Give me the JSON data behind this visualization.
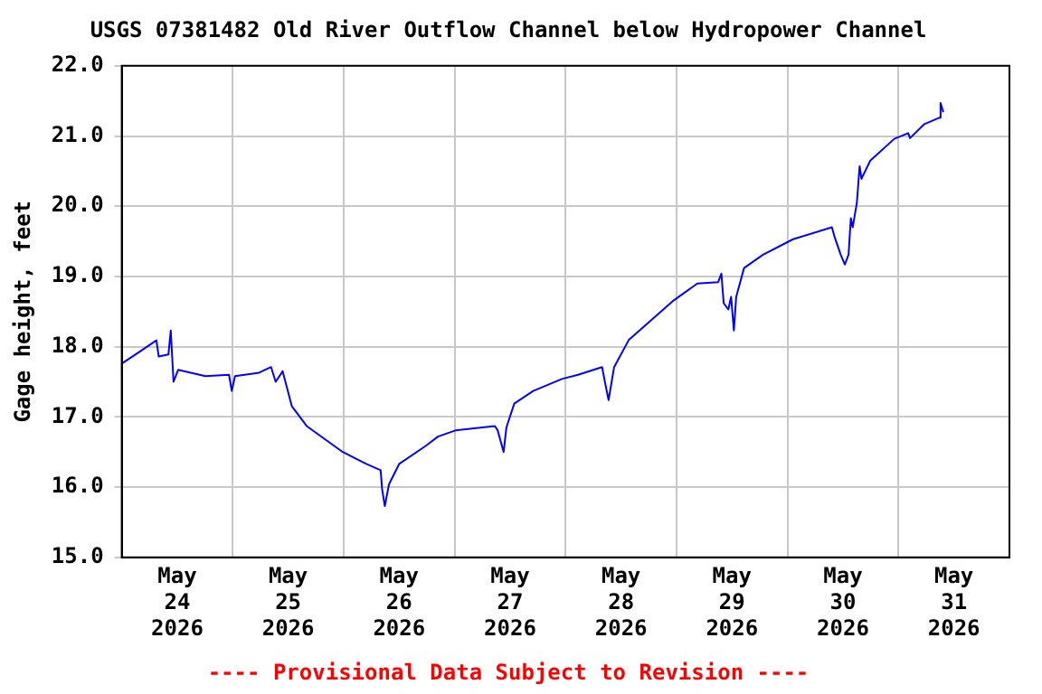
{
  "chart_data": {
    "type": "line",
    "title": "USGS 07381482 Old River Outflow Channel below Hydropower Channel",
    "ylabel": "Gage height, feet",
    "annotations": [
      "---- Provisional Data Subject to Revision ----"
    ],
    "x": [
      "2026-05-24T00:00",
      "2026-05-24T03:54",
      "2026-05-24T07:30",
      "2026-05-24T08:00",
      "2026-05-24T10:06",
      "2026-05-24T10:36",
      "2026-05-24T11:12",
      "2026-05-24T12:12",
      "2026-05-24T18:06",
      "2026-05-24T23:12",
      "2026-05-24T23:48",
      "2026-05-25T00:30",
      "2026-05-25T05:42",
      "2026-05-25T08:18",
      "2026-05-25T09:18",
      "2026-05-25T10:48",
      "2026-05-25T11:24",
      "2026-05-25T12:48",
      "2026-05-25T16:00",
      "2026-05-25T23:48",
      "2026-05-26T04:54",
      "2026-05-26T08:00",
      "2026-05-26T08:18",
      "2026-05-26T08:54",
      "2026-05-26T09:48",
      "2026-05-26T12:00",
      "2026-05-26T17:48",
      "2026-05-26T20:24",
      "2026-05-27T00:18",
      "2026-05-27T08:42",
      "2026-05-27T09:18",
      "2026-05-27T10:36",
      "2026-05-27T11:12",
      "2026-05-27T12:54",
      "2026-05-27T17:00",
      "2026-05-27T23:12",
      "2026-05-28T02:42",
      "2026-05-28T07:54",
      "2026-05-28T08:30",
      "2026-05-28T09:18",
      "2026-05-28T10:30",
      "2026-05-28T13:42",
      "2026-05-28T18:12",
      "2026-05-28T23:24",
      "2026-05-29T04:30",
      "2026-05-29T09:00",
      "2026-05-29T09:42",
      "2026-05-29T10:12",
      "2026-05-29T11:12",
      "2026-05-29T11:48",
      "2026-05-29T12:24",
      "2026-05-29T12:54",
      "2026-05-29T14:36",
      "2026-05-29T18:42",
      "2026-05-30T01:12",
      "2026-05-30T09:36",
      "2026-05-30T10:12",
      "2026-05-30T11:30",
      "2026-05-30T12:24",
      "2026-05-30T13:12",
      "2026-05-30T13:42",
      "2026-05-30T14:06",
      "2026-05-30T15:00",
      "2026-05-30T15:36",
      "2026-05-30T16:00",
      "2026-05-30T17:54",
      "2026-05-30T23:06",
      "2026-05-31T02:06",
      "2026-05-31T02:30",
      "2026-05-31T05:36",
      "2026-05-31T08:48",
      "2026-05-31T09:06",
      "2026-05-31T09:42"
    ],
    "series": [
      {
        "color": "#0000ff",
        "values": [
          17.76,
          17.93,
          18.09,
          17.86,
          17.89,
          18.23,
          17.5,
          17.67,
          17.58,
          17.6,
          17.37,
          17.58,
          17.63,
          17.71,
          17.5,
          17.65,
          17.5,
          17.15,
          16.87,
          16.5,
          16.33,
          16.24,
          15.98,
          15.73,
          16.04,
          16.33,
          16.59,
          16.72,
          16.81,
          16.87,
          16.81,
          16.5,
          16.85,
          17.19,
          17.37,
          17.54,
          17.6,
          17.71,
          17.5,
          17.24,
          17.71,
          18.1,
          18.36,
          18.66,
          18.9,
          18.92,
          19.04,
          18.62,
          18.53,
          18.71,
          18.23,
          18.71,
          19.12,
          19.31,
          19.53,
          19.7,
          19.56,
          19.31,
          19.17,
          19.31,
          19.83,
          19.7,
          20.05,
          20.57,
          20.39,
          20.65,
          20.96,
          21.04,
          20.97,
          21.17,
          21.26,
          21.47,
          21.34
        ]
      }
    ],
    "xlim": [
      "2026-05-24T00:00",
      "2026-06-01T00:00"
    ],
    "xticks": [
      {
        "value": "2026-05-24T12:00",
        "label": "May 24 2026"
      },
      {
        "value": "2026-05-25T00:00",
        "label": null
      },
      {
        "value": "2026-05-25T12:00",
        "label": "May 25 2026"
      },
      {
        "value": "2026-05-26T00:00",
        "label": null
      },
      {
        "value": "2026-05-26T12:00",
        "label": "May 26 2026"
      },
      {
        "value": "2026-05-27T00:00",
        "label": null
      },
      {
        "value": "2026-05-27T12:00",
        "label": "May 27 2026"
      },
      {
        "value": "2026-05-28T00:00",
        "label": null
      },
      {
        "value": "2026-05-28T12:00",
        "label": "May 28 2026"
      },
      {
        "value": "2026-05-29T00:00",
        "label": null
      },
      {
        "value": "2026-05-29T12:00",
        "label": "May 29 2026"
      },
      {
        "value": "2026-05-30T00:00",
        "label": null
      },
      {
        "value": "2026-05-30T12:00",
        "label": "May 30 2026"
      },
      {
        "value": "2026-05-31T00:00",
        "label": null
      },
      {
        "value": "2026-05-31T12:00",
        "label": "May 31 2026"
      }
    ],
    "ylim": [
      15,
      22
    ],
    "yticks": [
      {
        "value": 15,
        "label": "15.0"
      },
      {
        "value": 16,
        "label": "16.0"
      },
      {
        "value": 17,
        "label": "17.0"
      },
      {
        "value": 18,
        "label": "18.0"
      },
      {
        "value": 19,
        "label": "19.0"
      },
      {
        "value": 20,
        "label": "20.0"
      },
      {
        "value": 21,
        "label": "21.0"
      },
      {
        "value": 22,
        "label": "22.0"
      }
    ],
    "grid": true,
    "legend": false,
    "marker": "none",
    "line_style": "solid"
  }
}
